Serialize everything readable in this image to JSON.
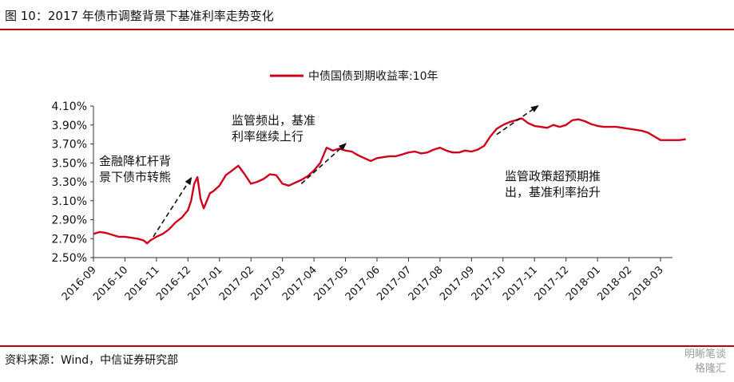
{
  "header": {
    "title": "图 10：2017 年债市调整背景下基准利率走势变化"
  },
  "footer": {
    "source": "资料来源：Wind，中信证券研究部",
    "watermark_line1": "明晰笔谈",
    "watermark_line2": "格隆汇"
  },
  "chart_data": {
    "type": "line",
    "title": "",
    "xlabel": "",
    "ylabel": "",
    "ylim": [
      2.5,
      4.1
    ],
    "y_ticks": [
      "2.50%",
      "2.70%",
      "2.90%",
      "3.10%",
      "3.30%",
      "3.50%",
      "3.70%",
      "3.90%",
      "4.10%"
    ],
    "x_ticks": [
      "2016-09",
      "2016-10",
      "2016-11",
      "2016-12",
      "2017-01",
      "2017-02",
      "2017-03",
      "2017-04",
      "2017-05",
      "2017-06",
      "2017-07",
      "2017-08",
      "2017-09",
      "2017-10",
      "2017-11",
      "2017-12",
      "2018-01",
      "2018-02",
      "2018-03"
    ],
    "legend": "top-center",
    "grid": false,
    "series": [
      {
        "name": "中债国债到期收益率:10年",
        "color": "#d0021b",
        "x_month_index": [
          0,
          0.2,
          0.4,
          0.6,
          0.8,
          1.0,
          1.2,
          1.4,
          1.6,
          1.7,
          1.8,
          2.0,
          2.2,
          2.4,
          2.6,
          2.8,
          3.0,
          3.1,
          3.2,
          3.3,
          3.4,
          3.5,
          3.6,
          3.7,
          3.8,
          4.0,
          4.2,
          4.4,
          4.6,
          4.8,
          5.0,
          5.2,
          5.4,
          5.6,
          5.8,
          6.0,
          6.2,
          6.4,
          6.6,
          6.8,
          7.0,
          7.2,
          7.4,
          7.6,
          7.8,
          8.0,
          8.2,
          8.4,
          8.6,
          8.8,
          9.0,
          9.2,
          9.4,
          9.6,
          9.8,
          10.0,
          10.2,
          10.4,
          10.6,
          10.8,
          11.0,
          11.2,
          11.4,
          11.6,
          11.8,
          12.0,
          12.2,
          12.4,
          12.6,
          12.8,
          13.0,
          13.2,
          13.4,
          13.6,
          13.8,
          14.0,
          14.2,
          14.4,
          14.6,
          14.8,
          15.0,
          15.2,
          15.4,
          15.6,
          15.8,
          16.0,
          16.2,
          16.4,
          16.6,
          16.8,
          17.0,
          17.2,
          17.4,
          17.6,
          17.8,
          18.0,
          18.2,
          18.4,
          18.6,
          18.8
        ],
        "values": [
          2.75,
          2.77,
          2.76,
          2.74,
          2.72,
          2.72,
          2.71,
          2.7,
          2.68,
          2.65,
          2.68,
          2.72,
          2.75,
          2.8,
          2.87,
          2.92,
          3.0,
          3.1,
          3.28,
          3.35,
          3.12,
          3.02,
          3.1,
          3.18,
          3.2,
          3.26,
          3.37,
          3.42,
          3.47,
          3.38,
          3.28,
          3.3,
          3.33,
          3.38,
          3.37,
          3.28,
          3.26,
          3.29,
          3.32,
          3.36,
          3.42,
          3.5,
          3.66,
          3.63,
          3.65,
          3.63,
          3.62,
          3.58,
          3.55,
          3.52,
          3.55,
          3.56,
          3.57,
          3.57,
          3.59,
          3.61,
          3.62,
          3.6,
          3.61,
          3.64,
          3.66,
          3.63,
          3.61,
          3.61,
          3.63,
          3.62,
          3.64,
          3.68,
          3.78,
          3.86,
          3.9,
          3.93,
          3.95,
          3.97,
          3.92,
          3.89,
          3.88,
          3.87,
          3.9,
          3.88,
          3.9,
          3.95,
          3.96,
          3.94,
          3.91,
          3.89,
          3.88,
          3.88,
          3.88,
          3.87,
          3.86,
          3.85,
          3.84,
          3.82,
          3.78,
          3.74,
          3.74,
          3.74,
          3.74,
          3.75
        ]
      }
    ],
    "annotations": [
      {
        "lines": [
          "金融降杠杆背",
          "景下债市转熊"
        ],
        "arrow_from": [
          1.9,
          2.72
        ],
        "arrow_to": [
          3.1,
          3.34
        ]
      },
      {
        "lines": [
          "监管频出，基准",
          "利率继续上行"
        ],
        "arrow_from": [
          6.6,
          3.28
        ],
        "arrow_to": [
          8.0,
          3.7
        ]
      },
      {
        "lines": [
          "监管政策超预期推",
          "出，基准利率抬升"
        ],
        "arrow_from": [
          12.8,
          3.8
        ],
        "arrow_to": [
          14.1,
          4.1
        ]
      }
    ]
  }
}
